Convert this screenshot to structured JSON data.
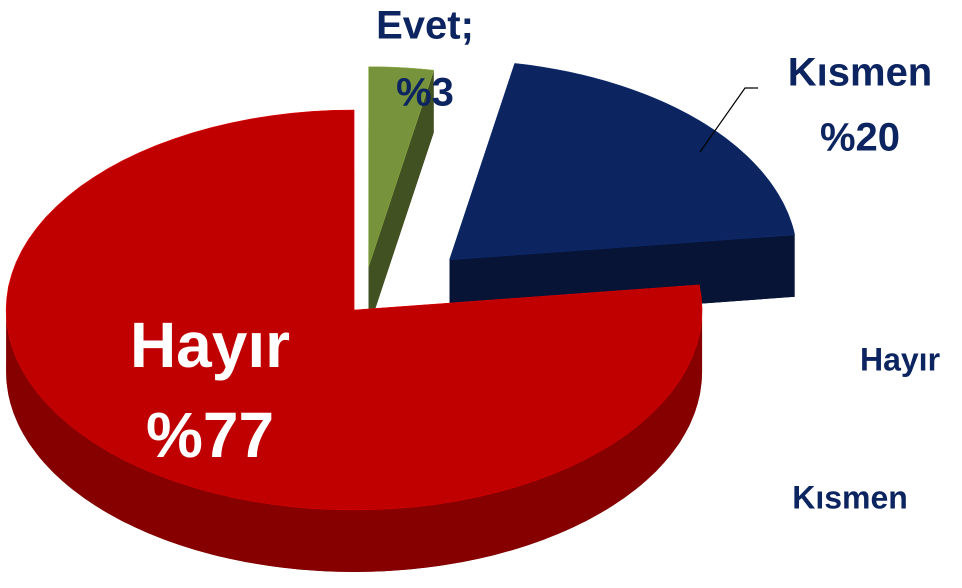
{
  "chart_data": {
    "type": "pie3d",
    "categories": [
      "Evet;",
      "Kısmen",
      "Hayır"
    ],
    "values": [
      3,
      20,
      77
    ],
    "value_labels": [
      "%3",
      "%20",
      "%77"
    ],
    "colors": [
      "#77933c",
      "#0c2560",
      "#c00000"
    ],
    "legend": "right"
  }
}
